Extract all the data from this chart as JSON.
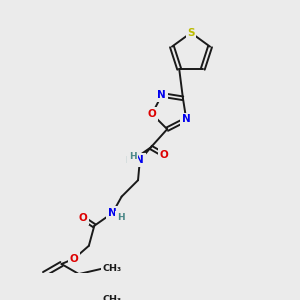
{
  "background_color": "#ebebeb",
  "figsize": [
    3.0,
    3.0
  ],
  "dpi": 100,
  "colors": {
    "C": "#1a1a1a",
    "N": "#0000ee",
    "O": "#dd0000",
    "S": "#bbbb00",
    "H": "#4a8888",
    "bond": "#1a1a1a"
  },
  "lw": 1.4,
  "fs": 7.5,
  "fs_small": 6.8
}
